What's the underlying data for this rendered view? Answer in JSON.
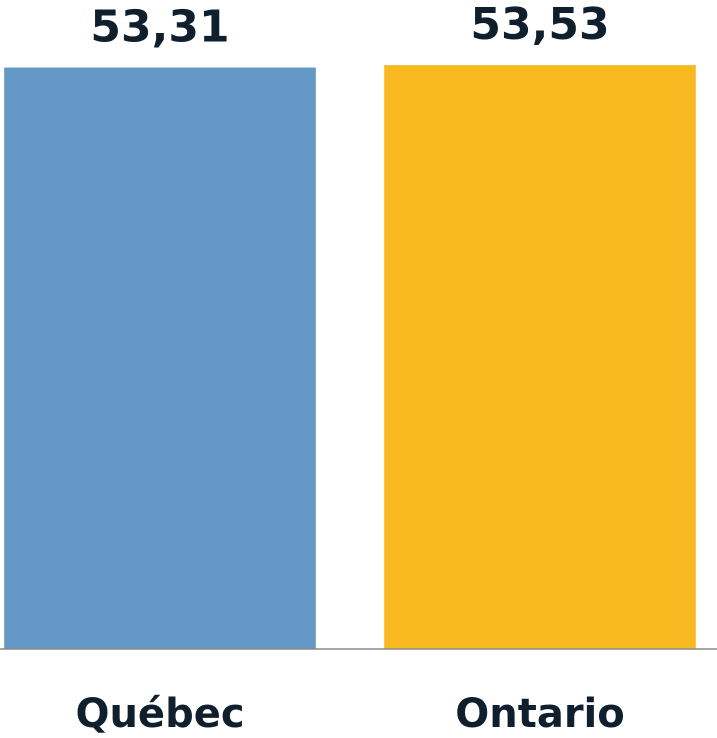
{
  "chart_data": {
    "type": "bar",
    "categories": [
      "Québec",
      "Ontario"
    ],
    "values": [
      53.31,
      53.53
    ],
    "value_labels": [
      "53,31",
      "53,53"
    ],
    "colors": [
      "#6498c7",
      "#f8b820"
    ],
    "ylim": [
      0,
      59.5
    ],
    "grid": false
  }
}
